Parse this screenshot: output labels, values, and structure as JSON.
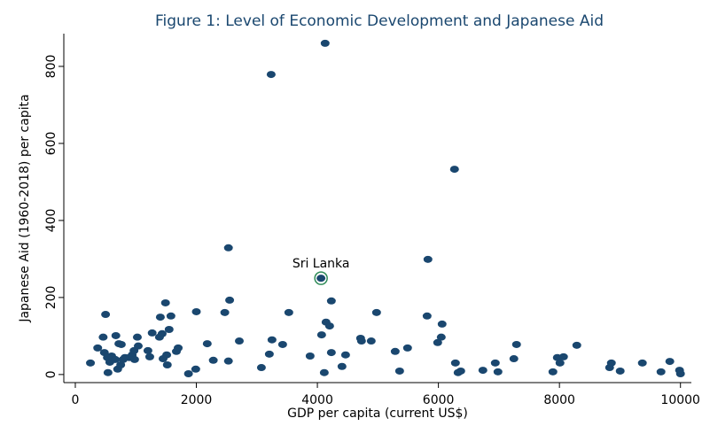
{
  "chart_data": {
    "type": "scatter",
    "title": "Figure 1: Level of Economic Development and Japanese Aid",
    "x_label": "GDP per capita (current US$)",
    "y_label": "Japanese Aid (1960-2018) per capita",
    "color": "#1a476f",
    "xlim": [
      -190,
      10180
    ],
    "ylim": [
      -21,
      885
    ],
    "xticks": [
      0,
      2000,
      4000,
      6000,
      8000,
      10000
    ],
    "yticks": [
      0,
      200,
      400,
      600,
      800
    ],
    "x": [
      250,
      370,
      460,
      500,
      480,
      530,
      540,
      570,
      600,
      660,
      670,
      700,
      720,
      760,
      790,
      750,
      820,
      890,
      940,
      980,
      970,
      1025,
      1040,
      1200,
      1230,
      1270,
      1390,
      1405,
      1435,
      1450,
      1490,
      1510,
      1520,
      1550,
      1580,
      1670,
      1700,
      1870,
      1990,
      2000,
      2180,
      2280,
      2470,
      2530,
      2530,
      2550,
      2710,
      3075,
      3206,
      3236,
      3250,
      3426,
      3528,
      3880,
      4070,
      4060,
      4114,
      4128,
      4143,
      4202,
      4231,
      4231,
      4407,
      4466,
      4714,
      4729,
      4890,
      4978,
      5286,
      5359,
      5490,
      5813,
      5827,
      5988,
      6047,
      6061,
      6266,
      6281,
      6325,
      6369,
      6735,
      6940,
      6984,
      7247,
      7291,
      7892,
      7965,
      8009,
      8067,
      8287,
      8829,
      8858,
      9004,
      9370,
      9678,
      9824,
      9985,
      10000
    ],
    "y": [
      30,
      69,
      97,
      156,
      57,
      44,
      5,
      32,
      48,
      39,
      101,
      14,
      80,
      78,
      39,
      25,
      44,
      44,
      51,
      39,
      62,
      97,
      74,
      62,
      46,
      108,
      97,
      149,
      106,
      41,
      186,
      51,
      25,
      117,
      152,
      60,
      69,
      2,
      14,
      163,
      80,
      37,
      161,
      35,
      329,
      193,
      87,
      18,
      53,
      779,
      90,
      78,
      161,
      48,
      103,
      250,
      5,
      860,
      136,
      126,
      191,
      57,
      21,
      51,
      94,
      87,
      87,
      161,
      60,
      9,
      69,
      152,
      299,
      83,
      97,
      131,
      533,
      30,
      5,
      9,
      11,
      30,
      7,
      41,
      78,
      7,
      44,
      30,
      46,
      76,
      18,
      30,
      9,
      30,
      7,
      34,
      11,
      2
    ],
    "annotations": [
      {
        "text": "Sri Lanka",
        "x": 4060,
        "y": 250
      }
    ]
  }
}
